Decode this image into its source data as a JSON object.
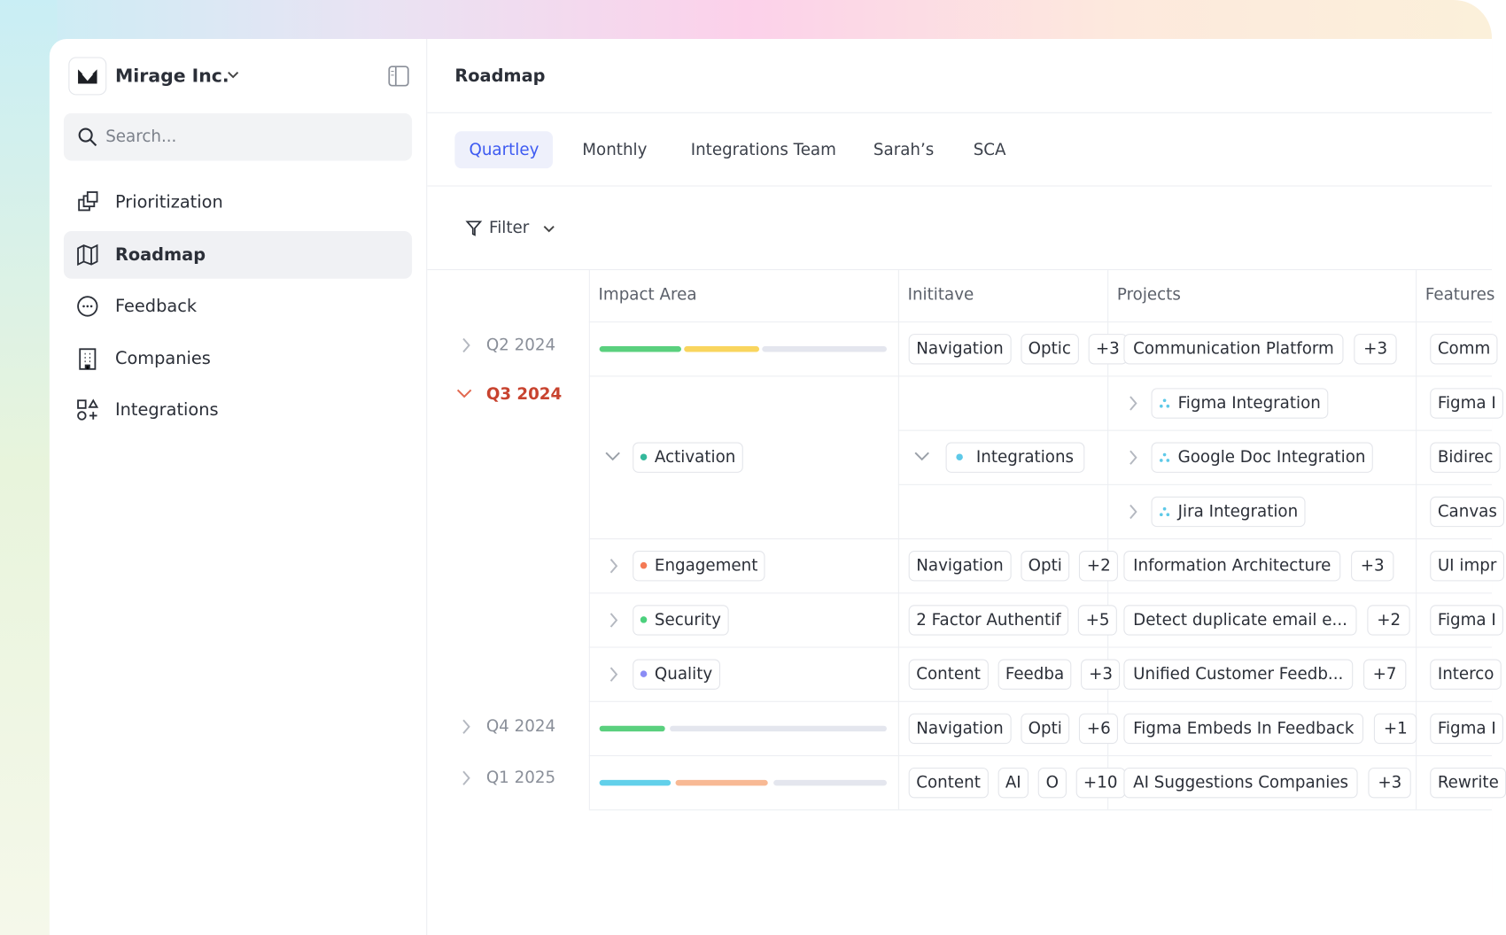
{
  "sidebar": {
    "workspace": "Mirage Inc.",
    "search_placeholder": "Search...",
    "nav": [
      "Prioritization",
      "Roadmap",
      "Feedback",
      "Companies",
      "Integrations"
    ]
  },
  "header": {
    "title": "Roadmap"
  },
  "tabs": [
    "Quartley",
    "Monthly",
    "Integrations Team",
    "Sarah’s",
    "SCA"
  ],
  "filter": "Filter",
  "table": {
    "columns": [
      "Impact Area",
      "Inititave",
      "Projects",
      "Features"
    ],
    "quarters": [
      "Q2 2024",
      "Q3 2024",
      "Q4 2024",
      "Q1 2025"
    ],
    "rows": [
      {
        "initiatives": [
          "Navigation",
          "Optic",
          "+3"
        ],
        "projects": [
          "Communication Platform",
          "+3"
        ],
        "features": [
          "Comm"
        ]
      },
      {
        "area": "Activation",
        "initiatives": [
          "Integrations"
        ],
        "projects": [
          "Figma Integration",
          "Google Doc Integration",
          "Jira Integration"
        ],
        "features": [
          "Figma I",
          "Bidirec",
          "Canvas"
        ]
      },
      {
        "area": "Engagement",
        "initiatives": [
          "Navigation",
          "Opti",
          "+2"
        ],
        "projects": [
          "Information Architecture",
          "+3"
        ],
        "features": [
          "UI impr"
        ]
      },
      {
        "area": "Security",
        "initiatives": [
          "2 Factor Authentif",
          "+5"
        ],
        "projects": [
          "Detect duplicate email e...",
          "+2"
        ],
        "features": [
          "Figma I"
        ]
      },
      {
        "area": "Quality",
        "initiatives": [
          "Content",
          "Feedba",
          "+3"
        ],
        "projects": [
          "Unified Customer Feedb...",
          "+7"
        ],
        "features": [
          "Interco"
        ]
      },
      {
        "initiatives": [
          "Navigation",
          "Opti",
          "+6"
        ],
        "projects": [
          "Figma Embeds In Feedback",
          "+1"
        ],
        "features": [
          "Figma I"
        ]
      },
      {
        "initiatives": [
          "Content",
          "AI",
          "O",
          "+10"
        ],
        "projects": [
          "AI Suggestions Companies",
          "+3"
        ],
        "features": [
          "Rewrite"
        ]
      }
    ]
  }
}
